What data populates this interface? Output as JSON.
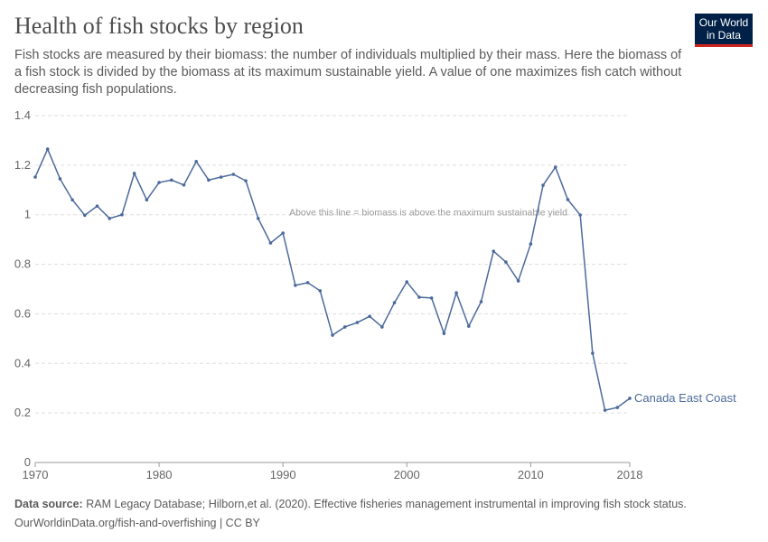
{
  "header": {
    "title": "Health of fish stocks by region",
    "subtitle": "Fish stocks are measured by their biomass: the number of individuals multiplied by their mass. Here the biomass of a fish stock is divided by the biomass at its maximum sustainable yield. A value of one maximizes fish catch without decreasing fish populations.",
    "logo_text": "Our World in Data"
  },
  "footer": {
    "source_label": "Data source:",
    "source_text": "RAM Legacy Database; Hilborn,et al. (2020). Effective fisheries management instrumental in improving fish stock status.",
    "url_license": "OurWorldinData.org/fish-and-overfishing | CC BY"
  },
  "chart_data": {
    "type": "line",
    "title": "Health of fish stocks by region",
    "xlim": [
      1970,
      2018
    ],
    "ylim": [
      0,
      1.4
    ],
    "x_ticks": [
      "1970",
      "1980",
      "1990",
      "2000",
      "2010",
      "2018"
    ],
    "y_ticks": [
      "0",
      "0.2",
      "0.4",
      "0.6",
      "0.8",
      "1",
      "1.2",
      "1.4"
    ],
    "grid": "horizontal dashed",
    "annotation": "Above this line = biomass is above the maximum sustainable yield",
    "series": [
      {
        "name": "Canada East Coast",
        "color": "#4c6a9c",
        "x": [
          1970,
          1971,
          1972,
          1973,
          1974,
          1975,
          1976,
          1977,
          1978,
          1979,
          1980,
          1981,
          1982,
          1983,
          1984,
          1985,
          1986,
          1987,
          1988,
          1989,
          1990,
          1991,
          1992,
          1993,
          1994,
          1995,
          1996,
          1997,
          1998,
          1999,
          2000,
          2001,
          2002,
          2003,
          2004,
          2005,
          2006,
          2007,
          2008,
          2009,
          2010,
          2011,
          2012,
          2013,
          2014,
          2015,
          2016,
          2017,
          2018
        ],
        "y": [
          1.152,
          1.265,
          1.145,
          1.06,
          0.998,
          1.035,
          0.985,
          1.0,
          1.167,
          1.06,
          1.13,
          1.14,
          1.12,
          1.215,
          1.14,
          1.152,
          1.163,
          1.137,
          0.985,
          0.886,
          0.926,
          0.715,
          0.726,
          0.693,
          0.514,
          0.547,
          0.565,
          0.59,
          0.547,
          0.645,
          0.729,
          0.667,
          0.664,
          0.521,
          0.685,
          0.55,
          0.649,
          0.853,
          0.809,
          0.733,
          0.882,
          1.119,
          1.192,
          1.061,
          0.999,
          0.441,
          0.211,
          0.222,
          0.259
        ]
      }
    ]
  }
}
